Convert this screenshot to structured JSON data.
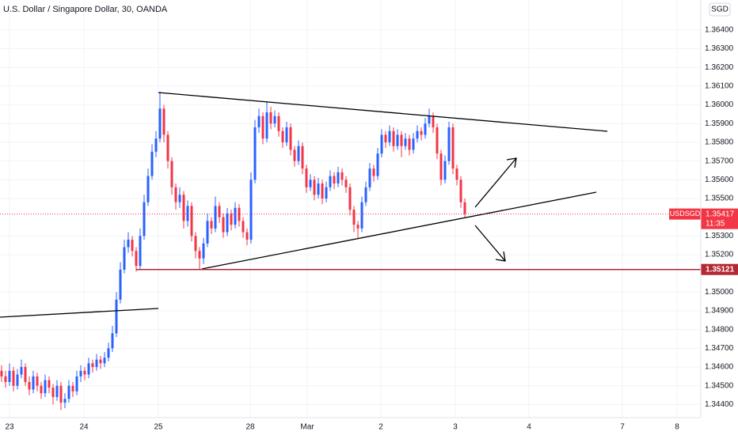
{
  "chart_data": {
    "type": "candlestick",
    "title": "U.S. Dollar / Singapore Dollar, 30, OANDA",
    "currency": "SGD",
    "symbol": "USDSGD",
    "up_color": "#2962ff",
    "down_color": "#f23645",
    "grid": true,
    "xlim": [
      -0.4,
      176.6
    ],
    "ylim": [
      1.3433,
      1.3656
    ],
    "xticks": [
      {
        "value": 2,
        "label": "23"
      },
      {
        "value": 20.8,
        "label": "24"
      },
      {
        "value": 39.6,
        "label": "25"
      },
      {
        "value": 62.8,
        "label": "28"
      },
      {
        "value": 77.2,
        "label": "Mar"
      },
      {
        "value": 95.8,
        "label": "2"
      },
      {
        "value": 114.6,
        "label": "3"
      },
      {
        "value": 133.2,
        "label": "4"
      },
      {
        "value": 156.8,
        "label": "7"
      },
      {
        "value": 170.6,
        "label": "8"
      }
    ],
    "yticks": [
      {
        "value": 1.344,
        "label": "1.34400"
      },
      {
        "value": 1.345,
        "label": "1.34500"
      },
      {
        "value": 1.346,
        "label": "1.34600"
      },
      {
        "value": 1.347,
        "label": "1.34700"
      },
      {
        "value": 1.348,
        "label": "1.34800"
      },
      {
        "value": 1.349,
        "label": "1.34900"
      },
      {
        "value": 1.35,
        "label": "1.35000"
      },
      {
        "value": 1.352,
        "label": "1.35200"
      },
      {
        "value": 1.353,
        "label": "1.35300"
      },
      {
        "value": 1.355,
        "label": "1.35500"
      },
      {
        "value": 1.356,
        "label": "1.35600"
      },
      {
        "value": 1.357,
        "label": "1.35700"
      },
      {
        "value": 1.358,
        "label": "1.35800"
      },
      {
        "value": 1.359,
        "label": "1.35900"
      },
      {
        "value": 1.36,
        "label": "1.36000"
      },
      {
        "value": 1.361,
        "label": "1.36100"
      },
      {
        "value": 1.362,
        "label": "1.36200"
      },
      {
        "value": 1.363,
        "label": "1.36300"
      },
      {
        "value": 1.364,
        "label": "1.36400"
      }
    ],
    "last_price": {
      "value": 1.35417,
      "label": "1.35417",
      "countdown": "11:35"
    },
    "level": {
      "value": 1.35121,
      "label": "1.35121"
    },
    "open": [
      1.3458,
      1.3455,
      1.3452,
      1.3458,
      1.345,
      1.3456,
      1.346,
      1.3452,
      1.3448,
      1.3455,
      1.345,
      1.3446,
      1.3453,
      1.3449,
      1.3444,
      1.345,
      1.3441,
      1.3443,
      1.345,
      1.3447,
      1.3455,
      1.3458,
      1.3456,
      1.3462,
      1.346,
      1.3464,
      1.3462,
      1.3465,
      1.347,
      1.3478,
      1.3496,
      1.3512,
      1.3524,
      1.3528,
      1.3522,
      1.3514,
      1.353,
      1.3548,
      1.3562,
      1.3575,
      1.3582,
      1.3598,
      1.3584,
      1.357,
      1.3556,
      1.3548,
      1.3552,
      1.3538,
      1.3546,
      1.353,
      1.3522,
      1.3518,
      1.3526,
      1.3538,
      1.3534,
      1.3546,
      1.354,
      1.3532,
      1.3542,
      1.3536,
      1.3545,
      1.3538,
      1.3532,
      1.3528,
      1.356,
      1.3588,
      1.3594,
      1.3582,
      1.3596,
      1.359,
      1.3594,
      1.3586,
      1.358,
      1.3588,
      1.3576,
      1.357,
      1.3578,
      1.3566,
      1.3556,
      1.356,
      1.3552,
      1.3558,
      1.355,
      1.3556,
      1.3562,
      1.3558,
      1.3564,
      1.356,
      1.3556,
      1.3544,
      1.3536,
      1.3534,
      1.3548,
      1.3556,
      1.3566,
      1.3562,
      1.3574,
      1.3584,
      1.358,
      1.3586,
      1.3578,
      1.3584,
      1.3578,
      1.3582,
      1.3576,
      1.3582,
      1.3586,
      1.3584,
      1.359,
      1.3594,
      1.3588,
      1.3574,
      1.356,
      1.357,
      1.3588,
      1.3566,
      1.356,
      1.3548
    ],
    "high": [
      1.3461,
      1.3458,
      1.3462,
      1.346,
      1.3459,
      1.3464,
      1.3462,
      1.3455,
      1.3458,
      1.3457,
      1.3452,
      1.3456,
      1.3455,
      1.3451,
      1.3453,
      1.3452,
      1.3446,
      1.3453,
      1.3452,
      1.3458,
      1.3461,
      1.346,
      1.3465,
      1.3464,
      1.3467,
      1.3466,
      1.3468,
      1.3473,
      1.3482,
      1.35,
      1.3516,
      1.3528,
      1.3532,
      1.353,
      1.3524,
      1.3534,
      1.3552,
      1.3566,
      1.3579,
      1.3586,
      1.3607,
      1.36,
      1.3586,
      1.3572,
      1.3558,
      1.3556,
      1.3554,
      1.3549,
      1.3548,
      1.3532,
      1.3524,
      1.3529,
      1.3542,
      1.354,
      1.3551,
      1.3548,
      1.3542,
      1.3545,
      1.3544,
      1.3548,
      1.3547,
      1.354,
      1.3534,
      1.3564,
      1.3592,
      1.3598,
      1.3596,
      1.3602,
      1.3599,
      1.3597,
      1.3596,
      1.3588,
      1.3591,
      1.359,
      1.3578,
      1.3581,
      1.358,
      1.3568,
      1.3563,
      1.3562,
      1.3561,
      1.356,
      1.3559,
      1.3565,
      1.3564,
      1.3567,
      1.3566,
      1.3562,
      1.3558,
      1.3546,
      1.3538,
      1.3551,
      1.3559,
      1.3569,
      1.3568,
      1.3577,
      1.3587,
      1.3586,
      1.3589,
      1.3588,
      1.3587,
      1.3586,
      1.3585,
      1.3584,
      1.3585,
      1.3589,
      1.3588,
      1.3593,
      1.3598,
      1.3596,
      1.359,
      1.3576,
      1.3573,
      1.3591,
      1.359,
      1.3568,
      1.3562,
      1.355
    ],
    "low": [
      1.3452,
      1.3449,
      1.345,
      1.3447,
      1.3448,
      1.3454,
      1.345,
      1.3445,
      1.3446,
      1.3447,
      1.3443,
      1.3444,
      1.3446,
      1.344,
      1.3442,
      1.3437,
      1.3438,
      1.3441,
      1.3444,
      1.3445,
      1.3452,
      1.3453,
      1.3454,
      1.3457,
      1.3458,
      1.3459,
      1.346,
      1.3463,
      1.3468,
      1.3476,
      1.3494,
      1.351,
      1.3521,
      1.3519,
      1.3511,
      1.3512,
      1.3528,
      1.3546,
      1.356,
      1.3572,
      1.358,
      1.358,
      1.3566,
      1.3552,
      1.3544,
      1.3545,
      1.3534,
      1.3535,
      1.3527,
      1.3518,
      1.3512,
      1.3515,
      1.3524,
      1.3531,
      1.3532,
      1.3537,
      1.3529,
      1.353,
      1.3533,
      1.3534,
      1.3535,
      1.3529,
      1.3525,
      1.3526,
      1.3558,
      1.3585,
      1.3579,
      1.358,
      1.3587,
      1.3588,
      1.3583,
      1.3577,
      1.3578,
      1.3573,
      1.3567,
      1.3568,
      1.3563,
      1.3553,
      1.3554,
      1.3549,
      1.355,
      1.3547,
      1.3548,
      1.3554,
      1.3555,
      1.3556,
      1.3557,
      1.3553,
      1.3541,
      1.3532,
      1.3529,
      1.3532,
      1.3546,
      1.3554,
      1.3559,
      1.356,
      1.3572,
      1.3577,
      1.3578,
      1.3575,
      1.3576,
      1.3572,
      1.3576,
      1.3573,
      1.3574,
      1.358,
      1.3581,
      1.3582,
      1.3588,
      1.3585,
      1.3571,
      1.3557,
      1.3558,
      1.3568,
      1.3563,
      1.3557,
      1.3545,
      1.354
    ],
    "close": [
      1.3455,
      1.3452,
      1.3458,
      1.345,
      1.3456,
      1.346,
      1.3452,
      1.3448,
      1.3455,
      1.345,
      1.3446,
      1.3453,
      1.3449,
      1.3444,
      1.345,
      1.3441,
      1.3443,
      1.345,
      1.3447,
      1.3455,
      1.3458,
      1.3456,
      1.3462,
      1.346,
      1.3464,
      1.3462,
      1.3465,
      1.347,
      1.3478,
      1.3496,
      1.3512,
      1.3524,
      1.3528,
      1.3522,
      1.3514,
      1.353,
      1.3548,
      1.3562,
      1.3575,
      1.3582,
      1.3598,
      1.3584,
      1.357,
      1.3556,
      1.3548,
      1.3552,
      1.3538,
      1.3546,
      1.353,
      1.3522,
      1.3518,
      1.3526,
      1.3538,
      1.3534,
      1.3546,
      1.354,
      1.3532,
      1.3542,
      1.3536,
      1.3545,
      1.3538,
      1.3532,
      1.3528,
      1.356,
      1.3588,
      1.3594,
      1.3582,
      1.3596,
      1.359,
      1.3594,
      1.3586,
      1.358,
      1.3588,
      1.3576,
      1.357,
      1.3578,
      1.3566,
      1.3556,
      1.356,
      1.3552,
      1.3558,
      1.355,
      1.3556,
      1.3562,
      1.3558,
      1.3564,
      1.356,
      1.3556,
      1.3544,
      1.3536,
      1.3534,
      1.3548,
      1.3556,
      1.3566,
      1.3562,
      1.3574,
      1.3584,
      1.358,
      1.3586,
      1.3578,
      1.3584,
      1.3578,
      1.3582,
      1.3576,
      1.3582,
      1.3586,
      1.3584,
      1.359,
      1.3594,
      1.3588,
      1.3574,
      1.356,
      1.357,
      1.3588,
      1.3566,
      1.356,
      1.3548,
      1.35417
    ]
  }
}
